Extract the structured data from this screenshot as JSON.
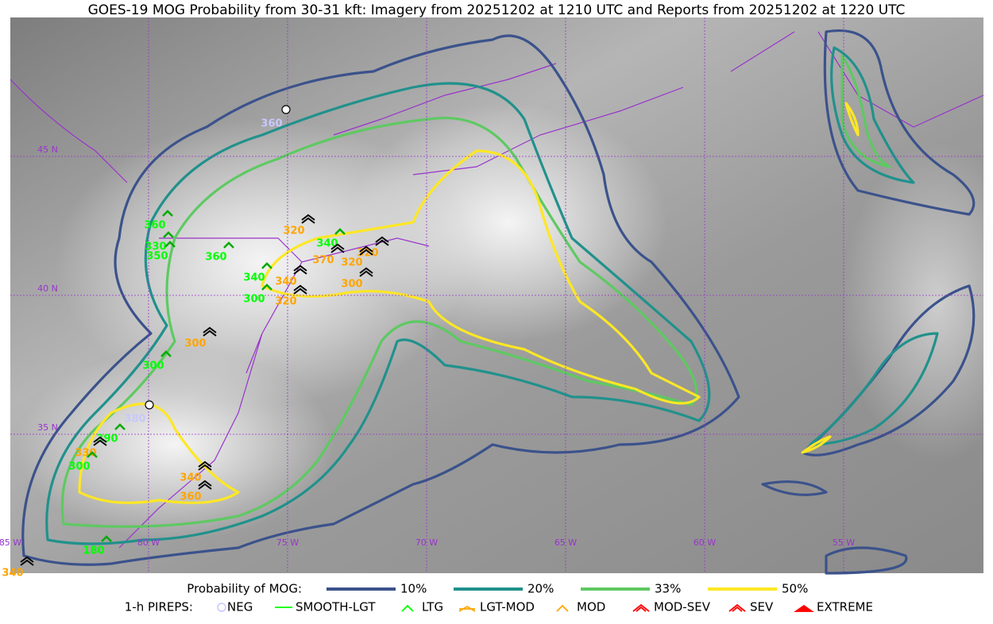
{
  "title": "GOES-19 MOG Probability from 30-31 kft: Imagery from 20251202 at 1210 UTC and Reports from 20251202 at 1220 UTC",
  "grid_labels": {
    "latitudes": [
      "45 N",
      "40 N",
      "35 N"
    ],
    "longitudes": [
      "85 W",
      "80 W",
      "75 W",
      "70 W",
      "65 W",
      "60 W",
      "55 W"
    ]
  },
  "legend": {
    "probability_title": "Probability of MOG:",
    "probability_levels": [
      {
        "label": "10%",
        "color": "#3b528b"
      },
      {
        "label": "20%",
        "color": "#21918c"
      },
      {
        "label": "33%",
        "color": "#5ec962"
      },
      {
        "label": "50%",
        "color": "#fde725"
      }
    ],
    "pireps_title": "1-h PIREPS:",
    "pirep_categories": [
      {
        "label": "NEG",
        "color": "#c8c8ff"
      },
      {
        "label": "SMOOTH-LGT",
        "color": "#00ff00"
      },
      {
        "label": "LTG",
        "color": "#00ff00"
      },
      {
        "label": "LGT-MOD",
        "color": "#ffa500"
      },
      {
        "label": "MOD",
        "color": "#ffa500"
      },
      {
        "label": "MOD-SEV",
        "color": "#ff0000"
      },
      {
        "label": "SEV",
        "color": "#ff0000"
      },
      {
        "label": "EXTREME",
        "color": "#ff0000"
      }
    ]
  },
  "reports": [
    {
      "altitude": "360",
      "category": "NEG"
    },
    {
      "altitude": "360",
      "category": "LTG"
    },
    {
      "altitude": "330",
      "category": "LTG"
    },
    {
      "altitude": "350",
      "category": "LTG"
    },
    {
      "altitude": "360",
      "category": "LTG"
    },
    {
      "altitude": "320",
      "category": "MOD"
    },
    {
      "altitude": "340",
      "category": "LTG"
    },
    {
      "altitude": "320",
      "category": "MOD"
    },
    {
      "altitude": "370",
      "category": "MOD"
    },
    {
      "altitude": "320",
      "category": "MOD"
    },
    {
      "altitude": "300",
      "category": "MOD"
    },
    {
      "altitude": "340",
      "category": "LTG"
    },
    {
      "altitude": "340",
      "category": "MOD"
    },
    {
      "altitude": "300",
      "category": "LTG"
    },
    {
      "altitude": "320",
      "category": "MOD"
    },
    {
      "altitude": "300",
      "category": "MOD"
    },
    {
      "altitude": "300",
      "category": "LTG"
    },
    {
      "altitude": "380",
      "category": "NEG"
    },
    {
      "altitude": "390",
      "category": "LTG"
    },
    {
      "altitude": "330",
      "category": "MOD"
    },
    {
      "altitude": "300",
      "category": "LTG"
    },
    {
      "altitude": "340",
      "category": "MOD"
    },
    {
      "altitude": "360",
      "category": "MOD"
    },
    {
      "altitude": "180",
      "category": "LTG"
    },
    {
      "altitude": "340",
      "category": "MOD"
    }
  ]
}
